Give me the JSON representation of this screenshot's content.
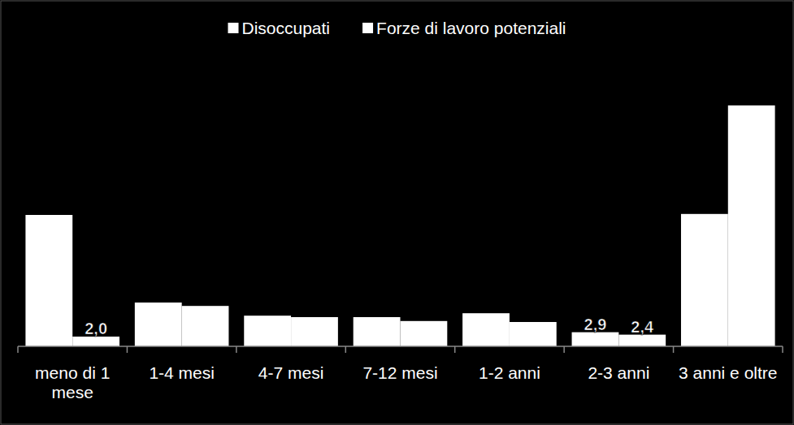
{
  "chart_data": {
    "type": "bar",
    "categories": [
      "meno di 1 mese",
      "1-4 mesi",
      "4-7 mesi",
      "7-12 mesi",
      "1-2 anni",
      "2-3 anni",
      "3 anni e oltre"
    ],
    "series": [
      {
        "name": "Disoccupati",
        "color": "#ffffff",
        "values": [
          27.0,
          9.0,
          6.3,
          6.0,
          6.8,
          2.9,
          27.2
        ],
        "value_labels": [
          null,
          null,
          null,
          null,
          null,
          "2,9",
          null
        ]
      },
      {
        "name": "Forze di lavoro potenziali",
        "color": "#ffffff",
        "values": [
          2.0,
          8.3,
          6.0,
          5.2,
          5.0,
          2.4,
          49.5
        ],
        "value_labels": [
          "2,0",
          null,
          null,
          null,
          null,
          "2,4",
          null
        ]
      }
    ],
    "ylim": [
      0,
      50
    ],
    "data_labels": true,
    "tick_labels": "x",
    "legend": "top"
  }
}
